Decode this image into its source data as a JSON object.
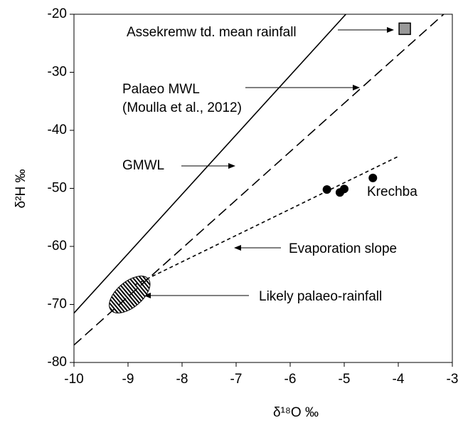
{
  "chart_data": {
    "type": "scatter",
    "xlabel": "δ¹⁸O ‰",
    "ylabel": "δ²H ‰",
    "xlim": [
      -10,
      -3
    ],
    "ylim": [
      -80,
      -20
    ],
    "xticks": [
      -10,
      -9,
      -8,
      -7,
      -6,
      -5,
      -4,
      -3
    ],
    "yticks": [
      -80,
      -70,
      -60,
      -50,
      -40,
      -30,
      -20
    ],
    "lines": [
      {
        "name": "GMWL",
        "dash": "none",
        "x": [
          -10,
          -4.97
        ],
        "values": [
          -71.5,
          -20
        ]
      },
      {
        "name": "Palaeo MWL",
        "dash": "14 7",
        "x": [
          -10,
          -3.16
        ],
        "values": [
          -77,
          -20
        ]
      },
      {
        "name": "Evaporation slope",
        "dash": "5 4",
        "x": [
          -8.87,
          -4
        ],
        "values": [
          -66.6,
          -44.5
        ]
      }
    ],
    "series": [
      {
        "name": "Krechba",
        "marker": "circle",
        "color": "#000000",
        "x": [
          -5.32,
          -5.08,
          -5.0,
          -4.47
        ],
        "values": [
          -50.2,
          -50.7,
          -50.1,
          -48.2
        ]
      },
      {
        "name": "Assekremw td. mean rainfall",
        "marker": "square",
        "color": "#999999",
        "x": [
          -3.88
        ],
        "values": [
          -22.5
        ]
      }
    ],
    "region": {
      "name": "Likely  palaeo-rainfall",
      "x": -8.97,
      "y": -68.3,
      "rx": 0.45,
      "ry": 2.2
    },
    "annotations": [
      "Assekremw td. mean rainfall",
      "Palaeo MWL",
      "(Moulla et al., 2012)",
      "GMWL",
      "Krechba",
      "Evaporation slope",
      "Likely  palaeo-rainfall"
    ]
  }
}
